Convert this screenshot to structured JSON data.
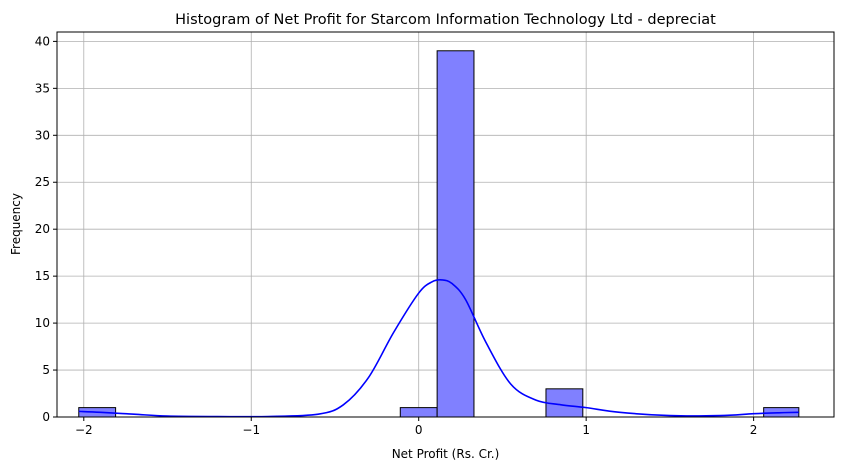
{
  "chart_data": {
    "type": "bar",
    "title": "Histogram of Net Profit for Starcom Information Technology Ltd - depreciat",
    "xlabel": "Net Profit (Rs. Cr.)",
    "ylabel": "Frequency",
    "xlim": [
      -2.16,
      2.48
    ],
    "ylim": [
      0,
      41
    ],
    "grid": true,
    "x_ticks": [
      -2,
      -1,
      0,
      1,
      2
    ],
    "x_tick_labels": [
      "−2",
      "−1",
      "0",
      "1",
      "2"
    ],
    "y_ticks": [
      0,
      5,
      10,
      15,
      20,
      25,
      30,
      35,
      40
    ],
    "y_tick_labels": [
      "0",
      "5",
      "10",
      "15",
      "20",
      "25",
      "30",
      "35",
      "40"
    ],
    "bins": [
      {
        "x0": -2.03,
        "x1": -1.81,
        "count": 1
      },
      {
        "x0": -0.11,
        "x1": 0.11,
        "count": 1
      },
      {
        "x0": 0.11,
        "x1": 0.33,
        "count": 39
      },
      {
        "x0": 0.76,
        "x1": 0.98,
        "count": 3
      },
      {
        "x0": 2.06,
        "x1": 2.27,
        "count": 1
      }
    ],
    "kde": {
      "x": [
        -2.03,
        -1.9,
        -1.7,
        -1.5,
        -1.2,
        -0.9,
        -0.6,
        -0.45,
        -0.3,
        -0.15,
        0.0,
        0.08,
        0.14,
        0.2,
        0.28,
        0.4,
        0.55,
        0.7,
        0.85,
        1.0,
        1.2,
        1.5,
        1.8,
        2.0,
        2.15,
        2.27
      ],
      "y": [
        0.6,
        0.5,
        0.3,
        0.1,
        0.05,
        0.05,
        0.3,
        1.3,
        4.2,
        9.0,
        13.2,
        14.4,
        14.6,
        14.2,
        12.5,
        8.0,
        3.5,
        1.8,
        1.3,
        1.0,
        0.5,
        0.15,
        0.15,
        0.35,
        0.45,
        0.5
      ]
    },
    "colors": {
      "bar_fill": "#8080ff",
      "bar_edge": "#000000",
      "kde_line": "#0000ff",
      "grid": "#b0b0b0"
    }
  }
}
